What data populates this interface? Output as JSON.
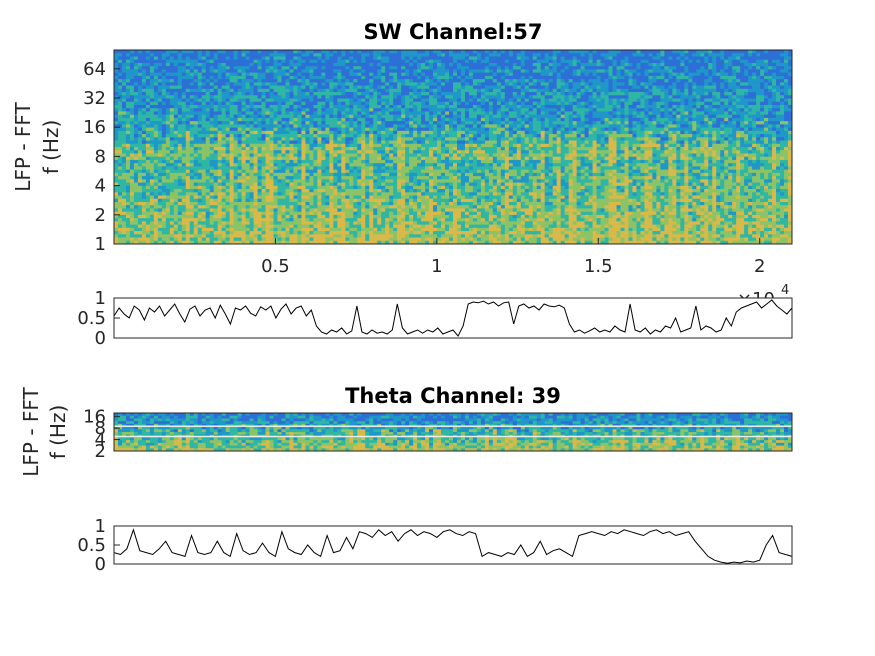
{
  "chart_data": [
    {
      "type": "heatmap",
      "title": "SW Channel:57",
      "ylabel_line1": "LFP - FFT",
      "ylabel_line2": "f (Hz)",
      "yscale": "log2",
      "ylim": [
        1,
        100
      ],
      "yticks": [
        1,
        2,
        4,
        8,
        16,
        32,
        64
      ],
      "ytick_labels": [
        "1",
        "2",
        "4",
        "8",
        "16",
        "32",
        "64"
      ],
      "xlim": [
        0,
        21000
      ],
      "xticks": [
        5000,
        10000,
        15000,
        20000
      ],
      "xtick_labels": [
        "0.5",
        "1",
        "1.5",
        "2"
      ],
      "x_exponent_base": "×10",
      "x_exponent_power": "4",
      "colormap": [
        "#2d6fd6",
        "#1f97c9",
        "#2fb6a5",
        "#8cc366",
        "#d9b94a"
      ]
    },
    {
      "type": "line",
      "yticks": [
        0,
        0.5,
        1
      ],
      "ytick_labels": [
        "0",
        "0.5",
        "1"
      ],
      "ylim": [
        0,
        1
      ],
      "xlim": [
        0,
        21000
      ],
      "series": [
        {
          "values": [
            0.55,
            0.75,
            0.6,
            0.5,
            0.8,
            0.7,
            0.45,
            0.75,
            0.65,
            0.8,
            0.55,
            0.7,
            0.85,
            0.6,
            0.4,
            0.72,
            0.8,
            0.55,
            0.7,
            0.75,
            0.5,
            0.82,
            0.6,
            0.35,
            0.75,
            0.7,
            0.8,
            0.62,
            0.55,
            0.78,
            0.7,
            0.8,
            0.5,
            0.72,
            0.85,
            0.6,
            0.75,
            0.8,
            0.55,
            0.7,
            0.3,
            0.15,
            0.1,
            0.2,
            0.15,
            0.25,
            0.1,
            0.18,
            0.8,
            0.15,
            0.1,
            0.2,
            0.12,
            0.15,
            0.1,
            0.2,
            0.85,
            0.25,
            0.1,
            0.15,
            0.2,
            0.12,
            0.2,
            0.15,
            0.25,
            0.1,
            0.15,
            0.2,
            0.05,
            0.3,
            0.85,
            0.9,
            0.88,
            0.92,
            0.85,
            0.9,
            0.8,
            0.88,
            0.9,
            0.35,
            0.8,
            0.85,
            0.75,
            0.8,
            0.7,
            0.85,
            0.8,
            0.78,
            0.82,
            0.75,
            0.35,
            0.15,
            0.2,
            0.12,
            0.18,
            0.25,
            0.15,
            0.2,
            0.15,
            0.3,
            0.2,
            0.15,
            0.85,
            0.2,
            0.15,
            0.25,
            0.1,
            0.2,
            0.15,
            0.3,
            0.25,
            0.5,
            0.15,
            0.2,
            0.25,
            0.8,
            0.2,
            0.3,
            0.25,
            0.15,
            0.2,
            0.5,
            0.3,
            0.65,
            0.75,
            0.8,
            0.85,
            0.9,
            0.75,
            0.85,
            0.95,
            0.8,
            0.7,
            0.6,
            0.75
          ]
        }
      ]
    },
    {
      "type": "heatmap",
      "title": "Theta Channel: 39",
      "ylabel_line1": "LFP - FFT",
      "ylabel_line2": "f (Hz)",
      "yscale": "log2",
      "ylim": [
        2,
        20
      ],
      "yticks": [
        2,
        4,
        8,
        16
      ],
      "ytick_labels": [
        "2",
        "4",
        "8",
        "16"
      ],
      "xlim": [
        0,
        21000
      ],
      "colormap": [
        "#2d6fd6",
        "#1f97c9",
        "#2fb6a5",
        "#8cc366",
        "#d9b94a"
      ]
    },
    {
      "type": "line",
      "yticks": [
        0,
        0.5,
        1
      ],
      "ytick_labels": [
        "0",
        "0.5",
        "1"
      ],
      "ylim": [
        0,
        1
      ],
      "xlim": [
        0,
        21000
      ],
      "series": [
        {
          "values": [
            0.3,
            0.25,
            0.4,
            0.9,
            0.35,
            0.3,
            0.25,
            0.4,
            0.6,
            0.3,
            0.25,
            0.2,
            0.75,
            0.3,
            0.25,
            0.3,
            0.6,
            0.3,
            0.2,
            0.8,
            0.35,
            0.25,
            0.3,
            0.55,
            0.3,
            0.2,
            0.85,
            0.4,
            0.3,
            0.25,
            0.5,
            0.3,
            0.2,
            0.75,
            0.3,
            0.35,
            0.7,
            0.4,
            0.85,
            0.8,
            0.7,
            0.9,
            0.75,
            0.85,
            0.6,
            0.8,
            0.9,
            0.75,
            0.85,
            0.8,
            0.7,
            0.85,
            0.9,
            0.8,
            0.75,
            0.85,
            0.8,
            0.2,
            0.3,
            0.25,
            0.2,
            0.3,
            0.25,
            0.5,
            0.2,
            0.3,
            0.6,
            0.25,
            0.35,
            0.4,
            0.3,
            0.2,
            0.75,
            0.8,
            0.85,
            0.8,
            0.75,
            0.85,
            0.8,
            0.9,
            0.85,
            0.8,
            0.75,
            0.85,
            0.9,
            0.8,
            0.85,
            0.75,
            0.8,
            0.85,
            0.6,
            0.4,
            0.2,
            0.1,
            0.05,
            0.02,
            0.05,
            0.03,
            0.08,
            0.05,
            0.1,
            0.5,
            0.75,
            0.3,
            0.25,
            0.2
          ]
        }
      ]
    }
  ]
}
